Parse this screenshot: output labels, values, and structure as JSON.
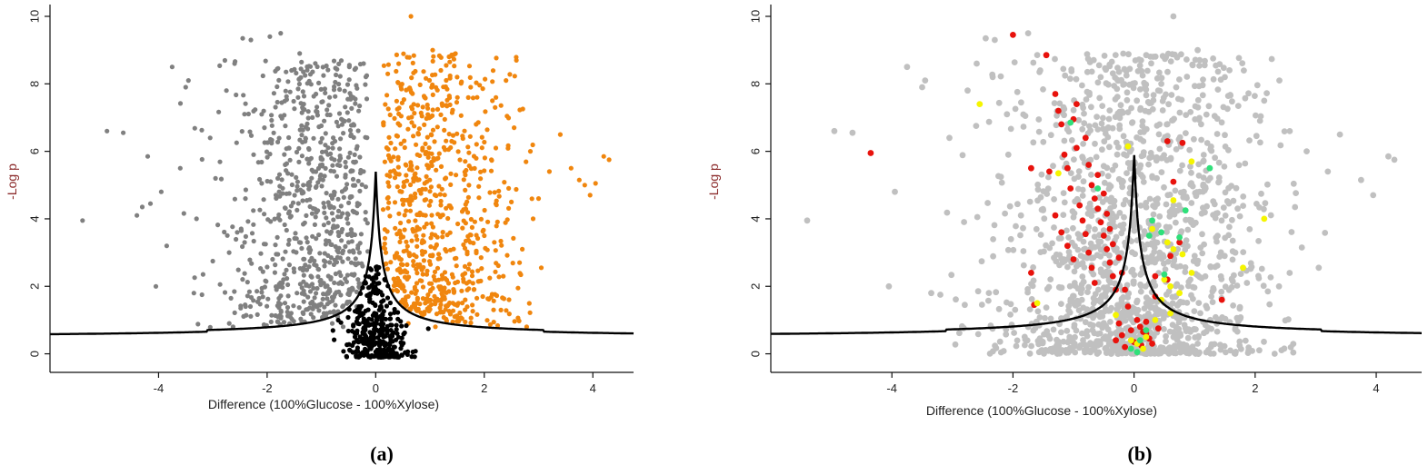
{
  "chart_data": [
    {
      "type": "scatter",
      "panel_label": "(a)",
      "xlabel": "Difference (100%Glucose - 100%Xylose)",
      "ylabel": "-Log p",
      "xlim": [
        -6.0,
        4.75
      ],
      "ylim": [
        -0.55,
        10.35
      ],
      "xticks": [
        -4,
        -2,
        0,
        2,
        4
      ],
      "yticks": [
        0,
        2,
        4,
        6,
        8,
        10
      ],
      "grid": false,
      "legend": "none",
      "threshold_curve": {
        "s0": 0.1,
        "fdr_line_low_y": 0.5,
        "fdr_line_high_y": 0.55,
        "peak_y": 5.5,
        "x_start": -6.0,
        "x_end": 4.75,
        "color": "#000000"
      },
      "series": [
        {
          "color": "#808080",
          "points": [
            [
              -5.4,
              3.95
            ],
            [
              -4.95,
              6.6
            ],
            [
              -4.65,
              6.55
            ],
            [
              -4.2,
              5.85
            ],
            [
              -4.05,
              2.0
            ],
            [
              -3.95,
              4.8
            ],
            [
              -3.75,
              8.5
            ],
            [
              -3.5,
              7.9
            ],
            [
              -3.45,
              8.1
            ],
            [
              -3.35,
              1.8
            ],
            [
              -3.2,
              1.75
            ],
            [
              -3.05,
              6.4
            ],
            [
              -2.75,
              7.8
            ],
            [
              -2.6,
              8.6
            ],
            [
              -2.45,
              9.35
            ],
            [
              -2.3,
              9.3
            ],
            [
              -2.1,
              7.1
            ],
            [
              -1.95,
              9.4
            ],
            [
              -1.75,
              9.5
            ],
            [
              -1.55,
              8.4
            ],
            [
              -1.4,
              8.9
            ],
            [
              -1.3,
              8.25
            ],
            [
              -1.1,
              7.7
            ],
            [
              -0.95,
              6.9
            ],
            [
              -4.4,
              4.1
            ],
            [
              -4.3,
              4.35
            ],
            [
              -4.15,
              4.45
            ],
            [
              -3.85,
              3.2
            ],
            [
              -3.6,
              5.5
            ],
            [
              -3.3,
              4.0
            ],
            [
              -2.95,
              5.2
            ],
            [
              -2.7,
              3.0
            ],
            [
              -2.55,
              3.6
            ],
            [
              -2.4,
              4.6
            ],
            [
              -2.25,
              5.9
            ],
            [
              -2.05,
              6.7
            ],
            [
              -1.9,
              2.8
            ],
            [
              -1.7,
              2.2
            ],
            [
              -1.6,
              6.1
            ],
            [
              -1.45,
              1.8
            ],
            [
              -1.35,
              7.3
            ],
            [
              -1.2,
              1.5
            ],
            [
              -1.15,
              5.4
            ],
            [
              -1.05,
              2.5
            ],
            [
              -0.9,
              1.2
            ],
            [
              -0.85,
              7.6
            ],
            [
              -0.8,
              0.9
            ],
            [
              -0.75,
              6.3
            ],
            [
              -0.7,
              1.1
            ],
            [
              -0.65,
              5.8
            ],
            [
              -0.6,
              0.8
            ],
            [
              -0.55,
              4.9
            ],
            [
              -0.5,
              3.3
            ],
            [
              -0.45,
              2.7
            ],
            [
              -0.4,
              4.2
            ],
            [
              -0.35,
              1.4
            ],
            [
              -0.3,
              3.0
            ]
          ],
          "cloud": {
            "count": 720,
            "x_center": -0.75,
            "x_spread": 0.95,
            "x_min": -3.6,
            "x_max": -0.13,
            "y_min": 0.7,
            "y_max": 8.7
          }
        },
        {
          "color": "#f0860e",
          "points": [
            [
              0.65,
              10.0
            ],
            [
              1.05,
              9.0
            ],
            [
              1.2,
              8.4
            ],
            [
              1.5,
              8.2
            ],
            [
              1.75,
              7.9
            ],
            [
              2.15,
              7.5
            ],
            [
              2.4,
              8.1
            ],
            [
              2.55,
              6.7
            ],
            [
              2.85,
              6.0
            ],
            [
              3.0,
              4.6
            ],
            [
              3.2,
              5.4
            ],
            [
              3.4,
              6.5
            ],
            [
              3.6,
              5.5
            ],
            [
              3.75,
              5.15
            ],
            [
              3.85,
              5.0
            ],
            [
              3.95,
              4.7
            ],
            [
              4.05,
              5.05
            ],
            [
              4.2,
              5.85
            ],
            [
              4.3,
              5.75
            ],
            [
              3.05,
              2.55
            ],
            [
              2.65,
              2.7
            ],
            [
              2.35,
              2.3
            ],
            [
              2.0,
              3.5
            ],
            [
              1.85,
              6.8
            ],
            [
              2.9,
              4.0
            ],
            [
              2.7,
              3.1
            ],
            [
              2.2,
              7.3
            ],
            [
              0.9,
              7.6
            ],
            [
              1.4,
              6.3
            ],
            [
              1.65,
              5.3
            ],
            [
              2.5,
              4.5
            ],
            [
              0.75,
              1.3
            ],
            [
              0.6,
              0.9
            ],
            [
              0.5,
              1.6
            ],
            [
              0.45,
              2.1
            ],
            [
              1.1,
              0.8
            ]
          ],
          "cloud": {
            "count": 720,
            "x_center": 0.9,
            "x_spread": 0.8,
            "x_min": 0.13,
            "x_max": 3.2,
            "y_min": 0.7,
            "y_max": 8.9
          }
        },
        {
          "color": "#000000",
          "points": [],
          "cloud": {
            "count": 340,
            "x_center": 0.0,
            "x_spread": 0.3,
            "x_min": -1.5,
            "x_max": 1.5,
            "y_min": -0.1,
            "y_max": 2.6,
            "below_curve": true
          }
        }
      ]
    },
    {
      "type": "scatter",
      "panel_label": "(b)",
      "xlabel": "Difference (100%Glucose - 100%Xylose)",
      "ylabel": "-Log p",
      "xlim": [
        -6.0,
        4.75
      ],
      "ylim": [
        -0.55,
        10.35
      ],
      "xticks": [
        -4,
        -2,
        0,
        2,
        4
      ],
      "yticks": [
        0,
        2,
        4,
        6,
        8,
        10
      ],
      "grid": false,
      "legend": "none",
      "threshold_curve": {
        "s0": 0.1,
        "fdr_line_low_y": 0.5,
        "fdr_line_high_y": 0.55,
        "peak_y": 6.0,
        "x_start": -6.0,
        "x_end": 4.75,
        "color": "#000000"
      },
      "series": [
        {
          "color": "#c0c0c0",
          "points": [
            [
              -5.4,
              3.95
            ],
            [
              -4.95,
              6.6
            ],
            [
              -4.65,
              6.55
            ],
            [
              -4.05,
              2.0
            ],
            [
              -3.95,
              4.8
            ],
            [
              -3.75,
              8.5
            ],
            [
              -3.5,
              7.9
            ],
            [
              -3.45,
              8.1
            ],
            [
              -3.35,
              1.8
            ],
            [
              -3.2,
              1.75
            ],
            [
              -3.05,
              6.4
            ],
            [
              -2.75,
              7.8
            ],
            [
              -2.6,
              8.6
            ],
            [
              -2.45,
              9.35
            ],
            [
              -2.3,
              9.3
            ],
            [
              -2.1,
              7.1
            ],
            [
              -1.75,
              9.5
            ],
            [
              -1.55,
              8.4
            ],
            [
              0.65,
              10.0
            ],
            [
              1.05,
              9.0
            ],
            [
              1.5,
              8.2
            ],
            [
              2.15,
              7.5
            ],
            [
              2.4,
              8.1
            ],
            [
              2.85,
              6.0
            ],
            [
              3.2,
              5.4
            ],
            [
              3.4,
              6.5
            ],
            [
              3.75,
              5.15
            ],
            [
              3.95,
              4.7
            ],
            [
              4.2,
              5.85
            ],
            [
              4.3,
              5.75
            ],
            [
              3.05,
              2.55
            ]
          ],
          "cloud": {
            "count": 1500,
            "x_center": 0.0,
            "x_spread": 1.05,
            "x_min": -3.6,
            "x_max": 3.2,
            "y_min": 0.0,
            "y_max": 8.9
          }
        },
        {
          "color": "#e8120c",
          "points": [
            [
              -4.35,
              5.95
            ],
            [
              -2.0,
              9.45
            ],
            [
              -1.45,
              8.85
            ],
            [
              -1.7,
              5.5
            ],
            [
              -1.65,
              1.45
            ],
            [
              -1.7,
              2.4
            ],
            [
              -1.3,
              7.7
            ],
            [
              -1.25,
              7.2
            ],
            [
              -1.2,
              6.8
            ],
            [
              -1.0,
              6.95
            ],
            [
              -0.95,
              7.4
            ],
            [
              -0.8,
              6.4
            ],
            [
              -0.75,
              5.6
            ],
            [
              -0.7,
              5.0
            ],
            [
              -0.65,
              4.6
            ],
            [
              -0.6,
              4.3
            ],
            [
              -0.55,
              3.9
            ],
            [
              -0.5,
              3.5
            ],
            [
              -0.45,
              3.1
            ],
            [
              -0.4,
              2.7
            ],
            [
              -0.35,
              2.3
            ],
            [
              -0.3,
              1.9
            ],
            [
              -1.4,
              5.4
            ],
            [
              -1.15,
              5.9
            ],
            [
              -1.1,
              5.5
            ],
            [
              -1.05,
              4.9
            ],
            [
              -0.9,
              4.4
            ],
            [
              -0.85,
              3.95
            ],
            [
              -0.8,
              3.55
            ],
            [
              -0.75,
              3.0
            ],
            [
              -0.7,
              2.55
            ],
            [
              -0.65,
              2.1
            ],
            [
              -1.3,
              4.1
            ],
            [
              -1.2,
              3.6
            ],
            [
              -1.1,
              3.2
            ],
            [
              -1.0,
              2.8
            ],
            [
              -0.95,
              6.1
            ],
            [
              -0.6,
              5.3
            ],
            [
              -0.5,
              4.75
            ],
            [
              -0.45,
              4.15
            ],
            [
              -0.4,
              3.7
            ],
            [
              -0.35,
              3.25
            ],
            [
              -0.25,
              2.85
            ],
            [
              -0.2,
              2.4
            ],
            [
              -0.15,
              1.9
            ],
            [
              -0.1,
              1.4
            ],
            [
              0.05,
              1.0
            ],
            [
              0.1,
              0.8
            ],
            [
              0.15,
              0.65
            ],
            [
              -0.05,
              0.7
            ],
            [
              0.2,
              0.95
            ],
            [
              -0.2,
              0.55
            ],
            [
              0.25,
              0.45
            ],
            [
              0.3,
              0.3
            ],
            [
              0.55,
              6.3
            ],
            [
              0.8,
              6.25
            ],
            [
              0.65,
              5.1
            ],
            [
              0.75,
              3.3
            ],
            [
              0.6,
              2.9
            ],
            [
              0.55,
              2.2
            ],
            [
              0.35,
              1.7
            ],
            [
              0.35,
              2.3
            ],
            [
              1.45,
              1.6
            ],
            [
              -0.25,
              0.9
            ],
            [
              0.0,
              0.35
            ],
            [
              -0.15,
              0.2
            ],
            [
              0.12,
              0.25
            ],
            [
              0.2,
              0.6
            ],
            [
              -0.3,
              0.4
            ],
            [
              0.4,
              0.75
            ]
          ],
          "cloud": null
        },
        {
          "color": "#f5f500",
          "points": [
            [
              -2.55,
              7.4
            ],
            [
              -1.25,
              5.35
            ],
            [
              -1.6,
              1.5
            ],
            [
              -0.1,
              6.15
            ],
            [
              0.95,
              5.7
            ],
            [
              0.65,
              4.55
            ],
            [
              0.3,
              3.7
            ],
            [
              0.55,
              3.3
            ],
            [
              0.65,
              3.1
            ],
            [
              0.8,
              2.95
            ],
            [
              0.95,
              2.4
            ],
            [
              0.5,
              2.2
            ],
            [
              0.6,
              2.0
            ],
            [
              0.75,
              1.8
            ],
            [
              0.45,
              1.6
            ],
            [
              -0.3,
              1.15
            ],
            [
              0.35,
              1.0
            ],
            [
              0.2,
              0.5
            ],
            [
              0.05,
              0.3
            ],
            [
              2.15,
              4.0
            ],
            [
              1.8,
              2.55
            ],
            [
              0.15,
              0.15
            ],
            [
              -0.05,
              0.4
            ],
            [
              0.6,
              1.2
            ]
          ],
          "cloud": null
        },
        {
          "color": "#2fe07a",
          "points": [
            [
              -1.05,
              6.85
            ],
            [
              -0.6,
              4.9
            ],
            [
              0.3,
              3.95
            ],
            [
              0.25,
              3.5
            ],
            [
              0.75,
              3.45
            ],
            [
              0.45,
              3.6
            ],
            [
              0.85,
              4.25
            ],
            [
              1.25,
              5.5
            ],
            [
              0.5,
              2.35
            ],
            [
              0.1,
              0.4
            ],
            [
              -0.05,
              0.15
            ],
            [
              0.2,
              0.7
            ],
            [
              0.05,
              0.05
            ]
          ],
          "cloud": null
        }
      ]
    }
  ]
}
